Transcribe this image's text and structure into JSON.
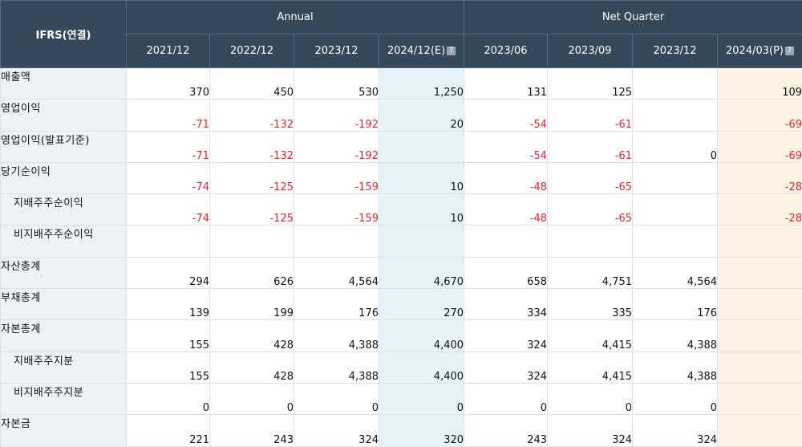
{
  "header": {
    "corner": "IFRS(연결)",
    "annual_label": "Annual",
    "quarter_label": "Net Quarter",
    "annual_periods": [
      "2021/12",
      "2022/12",
      "2023/12",
      "2024/12(E)"
    ],
    "quarter_periods": [
      "2023/06",
      "2023/09",
      "2023/12",
      "2024/03(P)"
    ],
    "help_icon_glyph": "?"
  },
  "colors": {
    "header_bg": "#35495b",
    "label_bg": "#eef2f7",
    "estimate_bg": "#e6f4fa",
    "provisional_bg": "#fdf3e4",
    "negative": "#e3272d"
  },
  "rows": [
    {
      "label": "매출액",
      "values": [
        "370",
        "450",
        "530",
        "1,250",
        "131",
        "125",
        "",
        "109"
      ]
    },
    {
      "label": "영업이익",
      "values": [
        "-71",
        "-132",
        "-192",
        "20",
        "-54",
        "-61",
        "",
        "-69"
      ]
    },
    {
      "label": "영업이익(발표기준)",
      "values": [
        "-71",
        "-132",
        "-192",
        "",
        "-54",
        "-61",
        "0",
        "-69"
      ]
    },
    {
      "label": "당기순이익",
      "values": [
        "-74",
        "-125",
        "-159",
        "10",
        "-48",
        "-65",
        "",
        "-28"
      ]
    },
    {
      "label": "지배주주순이익",
      "values": [
        "-74",
        "-125",
        "-159",
        "10",
        "-48",
        "-65",
        "",
        "-28"
      ]
    },
    {
      "label": "비지배주주순이익",
      "values": [
        "",
        "",
        "",
        "",
        "",
        "",
        "",
        ""
      ]
    },
    {
      "label": "자산총계",
      "values": [
        "294",
        "626",
        "4,564",
        "4,670",
        "658",
        "4,751",
        "4,564",
        ""
      ]
    },
    {
      "label": "부채총계",
      "values": [
        "139",
        "199",
        "176",
        "270",
        "334",
        "335",
        "176",
        ""
      ]
    },
    {
      "label": "자본총계",
      "values": [
        "155",
        "428",
        "4,388",
        "4,400",
        "324",
        "4,415",
        "4,388",
        ""
      ]
    },
    {
      "label": "지배주주지분",
      "values": [
        "155",
        "428",
        "4,388",
        "4,400",
        "324",
        "4,415",
        "4,388",
        ""
      ]
    },
    {
      "label": "비지배주주지분",
      "values": [
        "0",
        "0",
        "0",
        "0",
        "0",
        "0",
        "0",
        ""
      ]
    },
    {
      "label": "자본금",
      "values": [
        "221",
        "243",
        "324",
        "320",
        "243",
        "324",
        "324",
        ""
      ]
    }
  ]
}
